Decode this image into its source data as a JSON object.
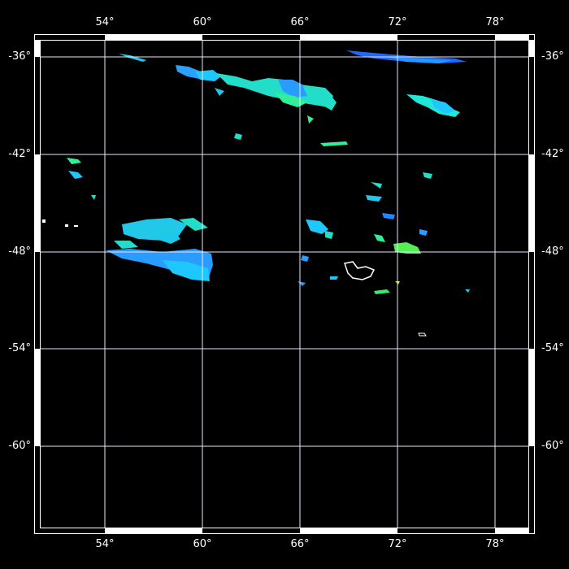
{
  "map": {
    "longitude_labels": [
      "54°",
      "60°",
      "66°",
      "72°",
      "78°"
    ],
    "latitude_labels": [
      "-36°",
      "-42°",
      "-48°",
      "-54°",
      "-60°"
    ],
    "longitudes": [
      54,
      60,
      66,
      72,
      78
    ],
    "latitudes": [
      -36,
      -42,
      -48,
      -54,
      -60
    ],
    "extent": {
      "lon_min": 49.65,
      "lon_max": 80.45,
      "lat_max": -34.6,
      "lat_min": -65.4
    },
    "colors": {
      "background": "#000000",
      "gridline": "#e8e8ff",
      "frame": "#ffffff",
      "data_low": "#1e6cff",
      "data_mid": "#19d8e8",
      "data_high": "#33ff66",
      "data_peak": "#ffffff"
    }
  }
}
